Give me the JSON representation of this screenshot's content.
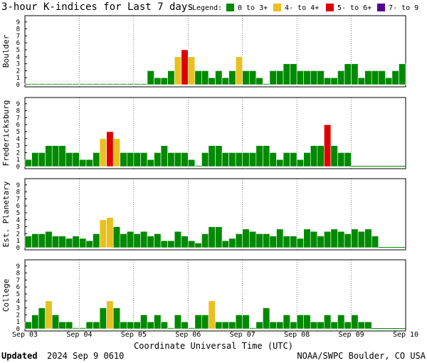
{
  "header": {
    "title": "3-hour K-indices for Last 7 days",
    "legend_label": "Legend:",
    "legend": [
      {
        "label": "0 to 3+",
        "color": "#008a00"
      },
      {
        "label": "4- to 4+",
        "color": "#e8c020"
      },
      {
        "label": "5- to 6+",
        "color": "#e00000"
      },
      {
        "label": "7- to 9",
        "color": "#5a0090"
      }
    ]
  },
  "footer": {
    "updated_label": "Updated",
    "updated_value": "2024 Sep  9 0610",
    "credit": "NOAA/SWPC Boulder, CO USA"
  },
  "chart_data": [
    {
      "type": "bar",
      "ylabel": "Boulder",
      "ylim": [
        0,
        9
      ],
      "values": [
        0,
        0,
        0,
        0,
        0,
        0,
        0,
        0,
        0,
        0,
        0,
        0,
        0,
        0,
        0,
        0,
        0,
        0,
        2,
        1,
        1,
        2,
        4,
        5,
        4,
        2,
        2,
        1,
        2,
        1,
        2,
        4,
        2,
        2,
        1,
        0,
        2,
        2,
        3,
        3,
        2,
        2,
        2,
        2,
        1,
        1,
        2,
        3,
        3,
        1,
        2,
        2,
        2,
        1,
        2,
        3,
        3,
        2,
        2,
        2
      ]
    },
    {
      "type": "bar",
      "ylabel": "Fredericksburg",
      "ylim": [
        0,
        9
      ],
      "values": [
        1,
        2,
        2,
        3,
        3,
        3,
        2,
        2,
        1,
        1,
        2,
        4,
        5,
        4,
        2,
        2,
        2,
        2,
        1,
        2,
        3,
        2,
        2,
        2,
        1,
        0,
        2,
        3,
        3,
        2,
        2,
        2,
        2,
        2,
        3,
        3,
        2,
        1,
        2,
        2,
        1,
        2,
        3,
        3,
        6,
        3,
        2,
        2
      ]
    },
    {
      "type": "bar",
      "ylabel": "Est. Planetary",
      "ylim": [
        0,
        9
      ],
      "values": [
        1.67,
        2,
        2,
        2.33,
        1.67,
        1.67,
        1.33,
        1.67,
        1.33,
        1,
        2,
        4,
        4.33,
        3,
        2,
        2.33,
        2,
        2.33,
        1.67,
        2,
        1,
        1,
        2.33,
        1.67,
        1,
        0.67,
        2,
        3,
        3,
        1,
        1.33,
        2,
        2.67,
        2.33,
        2,
        2,
        1.67,
        2.67,
        1.67,
        1.67,
        1.33,
        2.67,
        2.33,
        1.67,
        2.33,
        2.67,
        2.33,
        2,
        2.67,
        2.33,
        2.67,
        1.67
      ]
    },
    {
      "type": "bar",
      "ylabel": "College",
      "ylim": [
        0,
        9
      ],
      "values": [
        1,
        2,
        3,
        4,
        2,
        1,
        1,
        0,
        0,
        1,
        1,
        3,
        4,
        3,
        1,
        1,
        1,
        2,
        1,
        2,
        1,
        0,
        2,
        1,
        0,
        2,
        2,
        4,
        1,
        1,
        1,
        2,
        2,
        0,
        1,
        3,
        1,
        1,
        2,
        1,
        2,
        2,
        1,
        1,
        2,
        1,
        2,
        1,
        2,
        1,
        1
      ]
    }
  ],
  "x_axis": {
    "label": "Coordinate Universal Time (UTC)",
    "ticks": [
      "Sep 03",
      "Sep 04",
      "Sep 05",
      "Sep 06",
      "Sep 07",
      "Sep 08",
      "Sep 09",
      "Sep 10"
    ],
    "bars_per_day": 8,
    "days": 7
  },
  "y_ticks": [
    "0",
    "1",
    "2",
    "3",
    "4",
    "5",
    "6",
    "7",
    "8",
    "9"
  ]
}
